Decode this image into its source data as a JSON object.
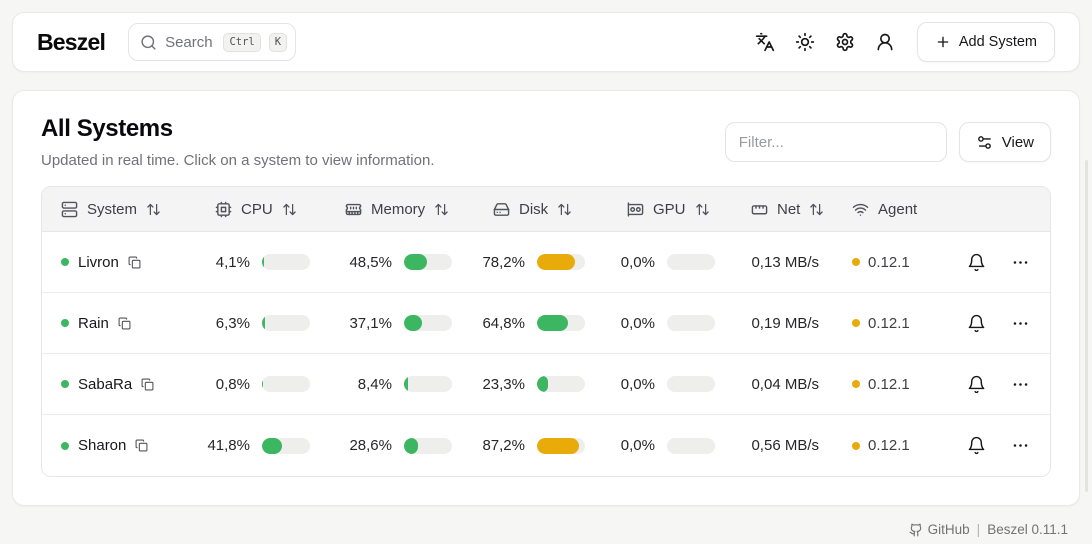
{
  "brand": "Beszel",
  "header": {
    "search": {
      "placeholder": "Search",
      "kbd_ctrl": "Ctrl",
      "kbd_k": "K"
    },
    "add_system_label": "Add System"
  },
  "page": {
    "title": "All Systems",
    "subtitle": "Updated in real time. Click on a system to view information.",
    "filter_placeholder": "Filter...",
    "view_label": "View"
  },
  "table": {
    "columns": [
      {
        "id": "system",
        "label": "System",
        "icon": "server-icon",
        "sortable": true
      },
      {
        "id": "cpu",
        "label": "CPU",
        "icon": "cpu-icon",
        "sortable": true
      },
      {
        "id": "memory",
        "label": "Memory",
        "icon": "memory-icon",
        "sortable": true
      },
      {
        "id": "disk",
        "label": "Disk",
        "icon": "hard-drive-icon",
        "sortable": true
      },
      {
        "id": "gpu",
        "label": "GPU",
        "icon": "gpu-icon",
        "sortable": true
      },
      {
        "id": "net",
        "label": "Net",
        "icon": "ethernet-icon",
        "sortable": true
      },
      {
        "id": "agent",
        "label": "Agent",
        "icon": "wifi-icon",
        "sortable": false
      }
    ],
    "rows": [
      {
        "name": "Livron",
        "status": "up",
        "cpu": {
          "text": "4,1%",
          "pct": 4.1,
          "level": "green"
        },
        "memory": {
          "text": "48,5%",
          "pct": 48.5,
          "level": "green"
        },
        "disk": {
          "text": "78,2%",
          "pct": 78.2,
          "level": "amber"
        },
        "gpu": {
          "text": "0,0%",
          "pct": 0,
          "level": "green"
        },
        "net": "0,13 MB/s",
        "agent": "0.12.1",
        "agent_level": "amber"
      },
      {
        "name": "Rain",
        "status": "up",
        "cpu": {
          "text": "6,3%",
          "pct": 6.3,
          "level": "green"
        },
        "memory": {
          "text": "37,1%",
          "pct": 37.1,
          "level": "green"
        },
        "disk": {
          "text": "64,8%",
          "pct": 64.8,
          "level": "green"
        },
        "gpu": {
          "text": "0,0%",
          "pct": 0,
          "level": "green"
        },
        "net": "0,19 MB/s",
        "agent": "0.12.1",
        "agent_level": "amber"
      },
      {
        "name": "SabaRa",
        "status": "up",
        "cpu": {
          "text": "0,8%",
          "pct": 0.8,
          "level": "green"
        },
        "memory": {
          "text": "8,4%",
          "pct": 8.4,
          "level": "green"
        },
        "disk": {
          "text": "23,3%",
          "pct": 23.3,
          "level": "green"
        },
        "gpu": {
          "text": "0,0%",
          "pct": 0,
          "level": "green"
        },
        "net": "0,04 MB/s",
        "agent": "0.12.1",
        "agent_level": "amber"
      },
      {
        "name": "Sharon",
        "status": "up",
        "cpu": {
          "text": "41,8%",
          "pct": 41.8,
          "level": "green"
        },
        "memory": {
          "text": "28,6%",
          "pct": 28.6,
          "level": "green"
        },
        "disk": {
          "text": "87,2%",
          "pct": 87.2,
          "level": "amber"
        },
        "gpu": {
          "text": "0,0%",
          "pct": 0,
          "level": "green"
        },
        "net": "0,56 MB/s",
        "agent": "0.12.1",
        "agent_level": "amber"
      }
    ]
  },
  "colors": {
    "green": "#3db662",
    "amber": "#e8ab09",
    "track": "#eeeeec",
    "status_up": "#3db662"
  },
  "footer": {
    "github_label": "GitHub",
    "separator": "|",
    "version": "Beszel 0.11.1"
  }
}
